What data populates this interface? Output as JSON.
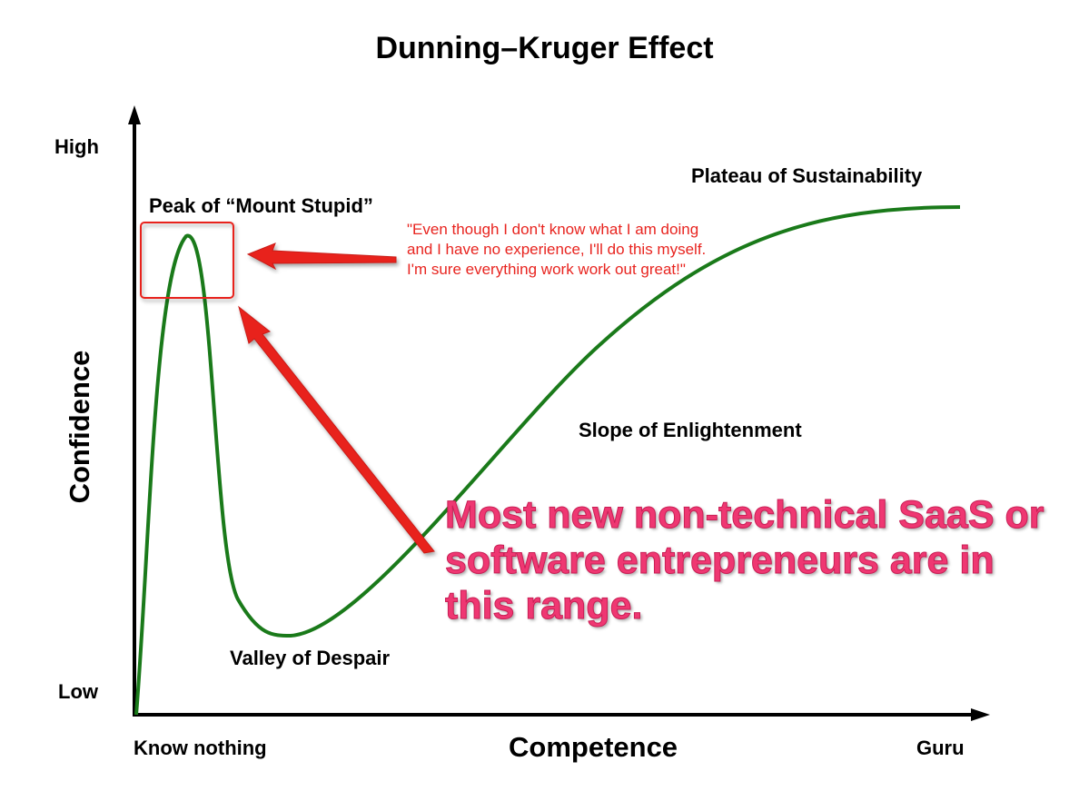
{
  "title": "Dunning–Kruger Effect",
  "axes": {
    "x_label": "Competence",
    "y_label": "Confidence",
    "x_min_label": "Know nothing",
    "x_max_label": "Guru",
    "y_min_label": "Low",
    "y_max_label": "High"
  },
  "stages": {
    "peak": "Peak of “Mount Stupid”",
    "valley": "Valley of Despair",
    "slope": "Slope of Enlightenment",
    "plateau": "Plateau of Sustainability"
  },
  "annotations": {
    "quote": "\"Even though I don't know what I am doing and I have no experience, I'll do this myself. I'm sure everything work work out great!\"",
    "callout": "Most new non-technical SaaS or software entrepreneurs are in this range."
  },
  "colors": {
    "curve": "#1a7a1a",
    "annotation_red": "#e8241f",
    "callout_pink": "#ef3772",
    "axis": "#000000"
  }
}
